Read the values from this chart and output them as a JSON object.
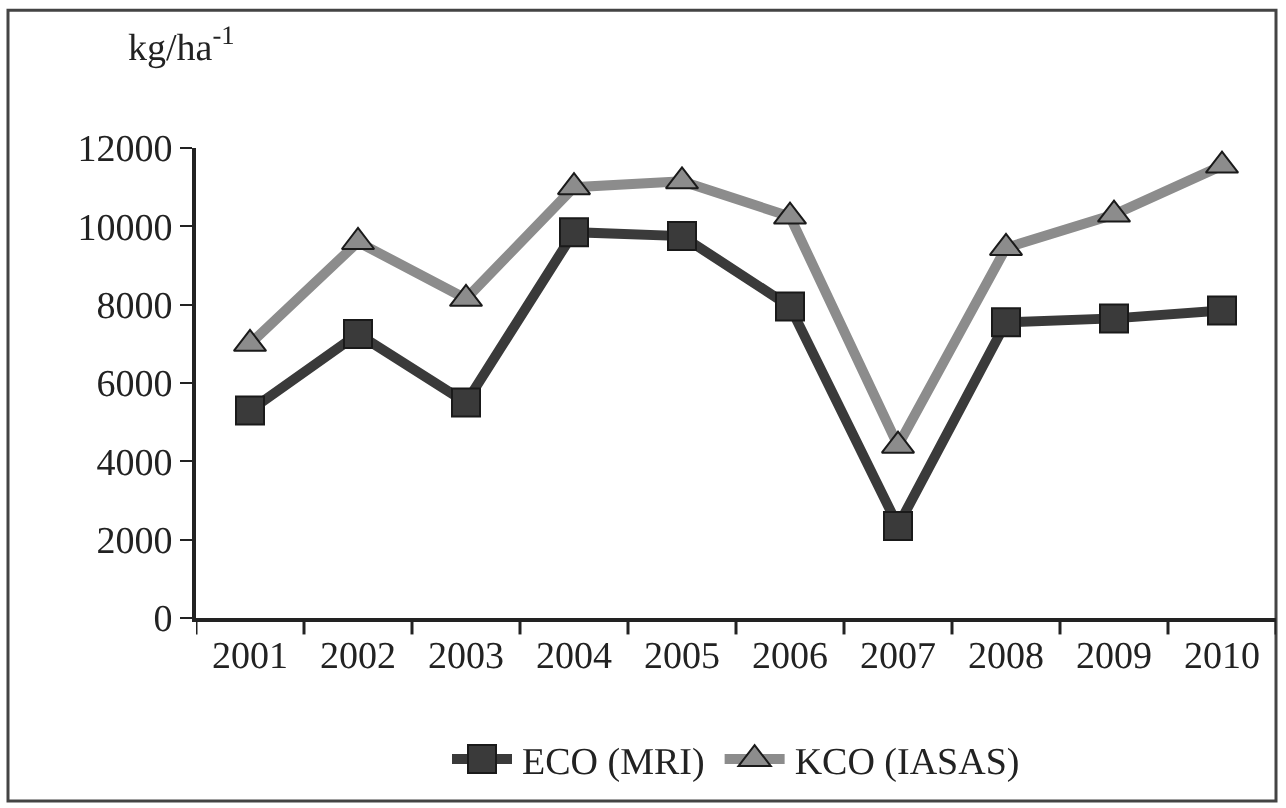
{
  "chart_data": {
    "type": "line",
    "ylabel": "kg/ha$^{-1}$",
    "categories": [
      "2001",
      "2002",
      "2003",
      "2004",
      "2005",
      "2006",
      "2007",
      "2008",
      "2009",
      "2010"
    ],
    "series": [
      {
        "name": "ECO (MRI)",
        "color": "#3a3a3a",
        "marker": "square",
        "values": [
          5300,
          7250,
          5500,
          9850,
          9750,
          7950,
          2350,
          7550,
          7650,
          7850
        ]
      },
      {
        "name": "KCO (IASAS)",
        "color": "#8c8c8c",
        "marker": "triangle",
        "values": [
          7000,
          9600,
          8150,
          11000,
          11150,
          10250,
          4400,
          9450,
          10300,
          11550
        ]
      }
    ],
    "ylim": [
      0,
      12000
    ],
    "yticks": [
      0,
      2000,
      4000,
      6000,
      8000,
      10000,
      12000
    ],
    "grid": false,
    "legend": "bottom",
    "line_style": "solid"
  }
}
